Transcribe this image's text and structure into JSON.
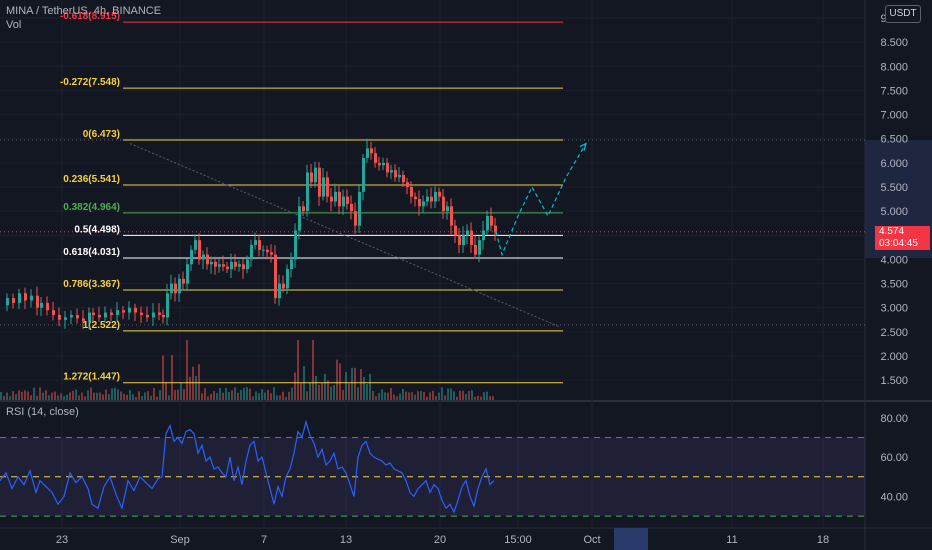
{
  "header": {
    "symbol_line": "MINA / TetherUS, 4h, BINANCE",
    "vol_label": "Vol"
  },
  "currency_badge": "USDT",
  "last_price": {
    "price": "4.574",
    "countdown": "03:04:45"
  },
  "rsi_header": "RSI (14, close)",
  "colors": {
    "background": "#131722",
    "up": "#26a69a",
    "down": "#ef5350",
    "fib": "#f5d142",
    "fib_top": "#f23645",
    "fib_382": "#4caf50",
    "fib_05": "#ffffff",
    "rsi_line": "#2962ff",
    "projection": "#00bcd4"
  },
  "chart_data": [
    {
      "type": "candlestick",
      "title": "MINA / TetherUS, 4h, BINANCE",
      "y_axis_ticks": [
        "9.000",
        "8.500",
        "8.000",
        "7.500",
        "7.000",
        "6.500",
        "6.000",
        "5.500",
        "5.000",
        "4.500",
        "4.000",
        "3.500",
        "3.000",
        "2.500",
        "2.000",
        "1.500"
      ],
      "ylim": [
        1.3,
        9.0
      ],
      "x_axis_ticks": [
        "23",
        "Sep",
        "7",
        "13",
        "20",
        "15:00",
        "Oct",
        "11",
        "18"
      ],
      "fib_levels": [
        {
          "ratio": "-0.618",
          "price": 8.915,
          "label": "-0.618(8.915)"
        },
        {
          "ratio": "-0.272",
          "price": 7.548,
          "label": "-0.272(7.548)"
        },
        {
          "ratio": "0",
          "price": 6.473,
          "label": "0(6.473)"
        },
        {
          "ratio": "0.236",
          "price": 5.541,
          "label": "0.236(5.541)"
        },
        {
          "ratio": "0.382",
          "price": 4.964,
          "label": "0.382(4.964)"
        },
        {
          "ratio": "0.5",
          "price": 4.498,
          "label": "0.5(4.498)"
        },
        {
          "ratio": "0.618",
          "price": 4.031,
          "label": "0.618(4.031)"
        },
        {
          "ratio": "0.786",
          "price": 3.367,
          "label": "0.786(3.367)"
        },
        {
          "ratio": "1",
          "price": 2.522,
          "label": "1(2.522)"
        },
        {
          "ratio": "1.272",
          "price": 1.447,
          "label": "1.272(1.447)"
        }
      ],
      "price_path": [
        [
          0,
          3.05
        ],
        [
          6,
          3.2
        ],
        [
          12,
          3.1
        ],
        [
          18,
          3.3
        ],
        [
          24,
          3.15
        ],
        [
          30,
          3.25
        ],
        [
          36,
          3.0
        ],
        [
          40,
          3.1
        ],
        [
          46,
          2.95
        ],
        [
          52,
          2.85
        ],
        [
          58,
          2.75
        ],
        [
          64,
          2.8
        ],
        [
          70,
          2.85
        ],
        [
          76,
          2.78
        ],
        [
          82,
          2.72
        ],
        [
          88,
          2.9
        ],
        [
          92,
          2.85
        ],
        [
          98,
          2.8
        ],
        [
          104,
          2.9
        ],
        [
          110,
          2.85
        ],
        [
          116,
          2.95
        ],
        [
          122,
          2.9
        ],
        [
          128,
          3.0
        ],
        [
          134,
          2.9
        ],
        [
          140,
          2.85
        ],
        [
          146,
          2.8
        ],
        [
          152,
          2.9
        ],
        [
          158,
          2.85
        ],
        [
          162,
          2.8
        ],
        [
          166,
          3.3
        ],
        [
          170,
          3.5
        ],
        [
          174,
          3.3
        ],
        [
          178,
          3.6
        ],
        [
          182,
          3.5
        ],
        [
          186,
          3.9
        ],
        [
          190,
          4.2
        ],
        [
          194,
          4.4
        ],
        [
          198,
          4.0
        ],
        [
          202,
          4.1
        ],
        [
          206,
          3.9
        ],
        [
          210,
          3.95
        ],
        [
          214,
          3.85
        ],
        [
          218,
          3.9
        ],
        [
          222,
          3.85
        ],
        [
          226,
          3.8
        ],
        [
          230,
          3.95
        ],
        [
          234,
          3.85
        ],
        [
          238,
          3.9
        ],
        [
          242,
          3.8
        ],
        [
          246,
          4.0
        ],
        [
          250,
          4.3
        ],
        [
          254,
          4.4
        ],
        [
          258,
          4.2
        ],
        [
          262,
          4.2
        ],
        [
          266,
          4.15
        ],
        [
          270,
          4.1
        ],
        [
          274,
          3.2
        ],
        [
          278,
          3.5
        ],
        [
          282,
          3.4
        ],
        [
          286,
          3.8
        ],
        [
          290,
          4.0
        ],
        [
          294,
          4.6
        ],
        [
          298,
          5.1
        ],
        [
          302,
          5.0
        ],
        [
          306,
          5.8
        ],
        [
          310,
          5.6
        ],
        [
          314,
          5.9
        ],
        [
          318,
          5.3
        ],
        [
          322,
          5.7
        ],
        [
          326,
          5.3
        ],
        [
          330,
          5.2
        ],
        [
          334,
          5.4
        ],
        [
          338,
          5.1
        ],
        [
          342,
          5.3
        ],
        [
          346,
          5.15
        ],
        [
          350,
          5.0
        ],
        [
          354,
          4.7
        ],
        [
          358,
          5.4
        ],
        [
          362,
          6.1
        ],
        [
          366,
          6.3
        ],
        [
          370,
          6.2
        ],
        [
          374,
          6.0
        ],
        [
          378,
          5.95
        ],
        [
          382,
          6.0
        ],
        [
          386,
          5.8
        ],
        [
          390,
          5.85
        ],
        [
          394,
          5.7
        ],
        [
          398,
          5.75
        ],
        [
          402,
          5.6
        ],
        [
          406,
          5.5
        ],
        [
          410,
          5.3
        ],
        [
          414,
          5.25
        ],
        [
          418,
          5.1
        ],
        [
          422,
          5.2
        ],
        [
          426,
          5.3
        ],
        [
          430,
          5.2
        ],
        [
          434,
          5.4
        ],
        [
          438,
          5.3
        ],
        [
          442,
          5.0
        ],
        [
          446,
          5.1
        ],
        [
          450,
          4.7
        ],
        [
          454,
          4.5
        ],
        [
          458,
          4.3
        ],
        [
          462,
          4.5
        ],
        [
          466,
          4.6
        ],
        [
          470,
          4.3
        ],
        [
          474,
          4.1
        ],
        [
          478,
          4.4
        ],
        [
          482,
          4.6
        ],
        [
          486,
          4.9
        ],
        [
          490,
          4.7
        ],
        [
          494,
          4.574
        ]
      ],
      "projection_path": [
        [
          496,
          4.574
        ],
        [
          502,
          4.1
        ],
        [
          518,
          4.9
        ],
        [
          532,
          5.5
        ],
        [
          548,
          4.9
        ],
        [
          566,
          5.7
        ],
        [
          586,
          6.4
        ]
      ],
      "trendline": [
        [
          130,
          6.4
        ],
        [
          560,
          2.6
        ]
      ]
    },
    {
      "type": "line",
      "title": "RSI (14, close)",
      "y_axis_ticks": [
        "80.00",
        "60.00",
        "40.00"
      ],
      "ylim": [
        28,
        84
      ],
      "bands": [
        {
          "value": 70,
          "color": "#f23645"
        },
        {
          "value": 50,
          "color": "#f5d142"
        },
        {
          "value": 30,
          "color": "#4caf50"
        }
      ],
      "rsi_path": [
        [
          0,
          48
        ],
        [
          6,
          52
        ],
        [
          12,
          44
        ],
        [
          18,
          50
        ],
        [
          24,
          46
        ],
        [
          30,
          53
        ],
        [
          36,
          42
        ],
        [
          40,
          48
        ],
        [
          46,
          45
        ],
        [
          52,
          42
        ],
        [
          58,
          36
        ],
        [
          64,
          40
        ],
        [
          70,
          52
        ],
        [
          76,
          47
        ],
        [
          82,
          50
        ],
        [
          88,
          44
        ],
        [
          92,
          36
        ],
        [
          98,
          34
        ],
        [
          104,
          45
        ],
        [
          110,
          50
        ],
        [
          116,
          41
        ],
        [
          122,
          34
        ],
        [
          128,
          48
        ],
        [
          134,
          43
        ],
        [
          140,
          50
        ],
        [
          146,
          47
        ],
        [
          152,
          44
        ],
        [
          158,
          49
        ],
        [
          162,
          50
        ],
        [
          166,
          72
        ],
        [
          170,
          76
        ],
        [
          174,
          68
        ],
        [
          178,
          70
        ],
        [
          182,
          67
        ],
        [
          186,
          73
        ],
        [
          190,
          74
        ],
        [
          194,
          72
        ],
        [
          198,
          62
        ],
        [
          202,
          66
        ],
        [
          206,
          58
        ],
        [
          210,
          60
        ],
        [
          214,
          54
        ],
        [
          218,
          55
        ],
        [
          222,
          52
        ],
        [
          226,
          50
        ],
        [
          230,
          60
        ],
        [
          234,
          48
        ],
        [
          238,
          55
        ],
        [
          242,
          46
        ],
        [
          246,
          58
        ],
        [
          250,
          66
        ],
        [
          254,
          68
        ],
        [
          258,
          58
        ],
        [
          262,
          60
        ],
        [
          266,
          52
        ],
        [
          270,
          44
        ],
        [
          274,
          36
        ],
        [
          278,
          45
        ],
        [
          282,
          40
        ],
        [
          286,
          50
        ],
        [
          290,
          54
        ],
        [
          294,
          62
        ],
        [
          298,
          73
        ],
        [
          302,
          70
        ],
        [
          306,
          78
        ],
        [
          310,
          71
        ],
        [
          314,
          67
        ],
        [
          318,
          60
        ],
        [
          322,
          64
        ],
        [
          326,
          56
        ],
        [
          330,
          58
        ],
        [
          334,
          62
        ],
        [
          338,
          54
        ],
        [
          342,
          55
        ],
        [
          346,
          52
        ],
        [
          350,
          46
        ],
        [
          354,
          40
        ],
        [
          358,
          60
        ],
        [
          362,
          66
        ],
        [
          366,
          68
        ],
        [
          370,
          62
        ],
        [
          374,
          60
        ],
        [
          378,
          59
        ],
        [
          382,
          58
        ],
        [
          386,
          56
        ],
        [
          390,
          57
        ],
        [
          394,
          54
        ],
        [
          398,
          53
        ],
        [
          402,
          52
        ],
        [
          406,
          48
        ],
        [
          410,
          42
        ],
        [
          414,
          40
        ],
        [
          418,
          44
        ],
        [
          422,
          46
        ],
        [
          426,
          48
        ],
        [
          430,
          42
        ],
        [
          434,
          46
        ],
        [
          438,
          44
        ],
        [
          442,
          38
        ],
        [
          446,
          34
        ],
        [
          450,
          36
        ],
        [
          454,
          32
        ],
        [
          458,
          38
        ],
        [
          462,
          45
        ],
        [
          466,
          48
        ],
        [
          470,
          40
        ],
        [
          474,
          35
        ],
        [
          478,
          44
        ],
        [
          482,
          50
        ],
        [
          486,
          54
        ],
        [
          490,
          46
        ],
        [
          494,
          48
        ]
      ]
    }
  ]
}
